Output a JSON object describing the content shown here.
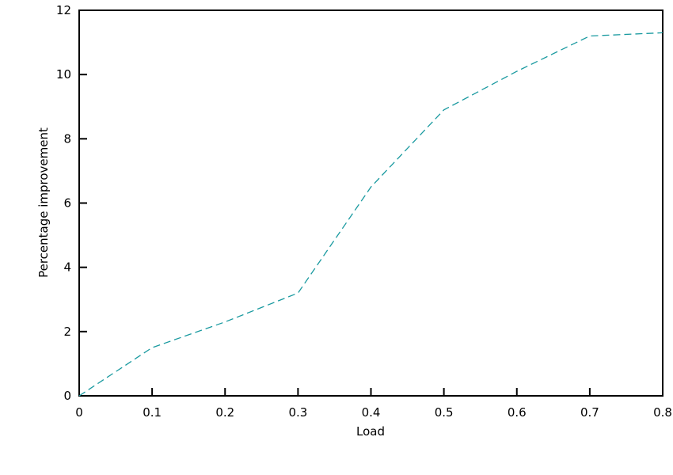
{
  "chart_data": {
    "type": "line",
    "x": [
      0,
      0.1,
      0.2,
      0.3,
      0.4,
      0.5,
      0.6,
      0.7,
      0.8
    ],
    "series": [
      {
        "color": "#1a9aa0",
        "values": [
          0,
          1.5,
          2.3,
          3.2,
          6.5,
          8.9,
          10.1,
          11.2,
          11.3
        ]
      }
    ],
    "xlabel": "Load",
    "ylabel": "Percentage improvement",
    "xlim": [
      0,
      0.8
    ],
    "xticks": [
      0,
      0.1,
      0.2,
      0.3,
      0.4,
      0.5,
      0.6,
      0.7,
      0.8
    ],
    "ylim": [
      0,
      12
    ],
    "yticks": [
      0,
      2,
      4,
      6,
      8,
      10,
      12
    ],
    "line_style": "dashed"
  }
}
